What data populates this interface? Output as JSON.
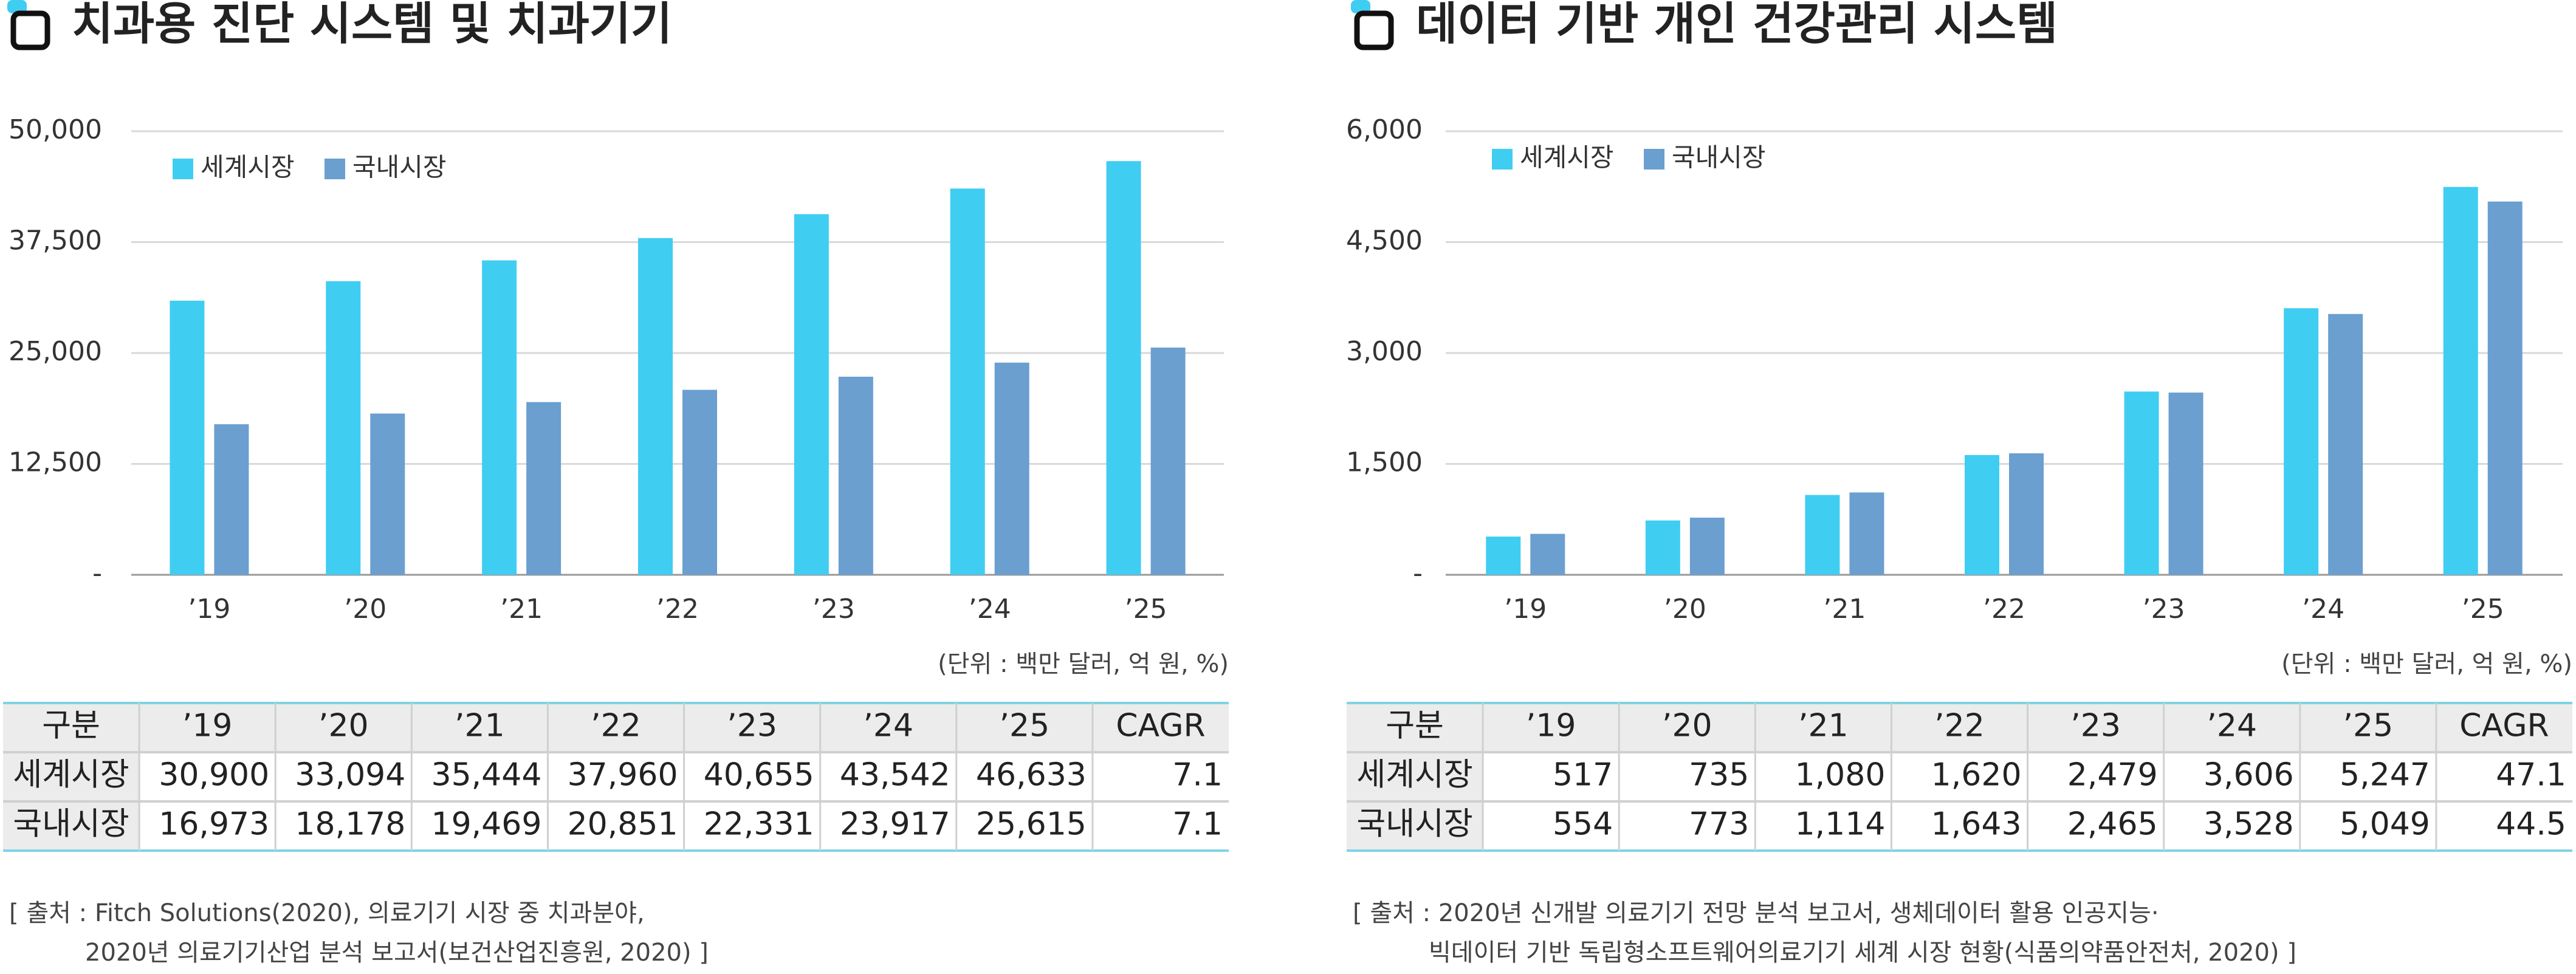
{
  "chart_data": [
    {
      "type": "bar",
      "title": "치과용 진단 시스템 및 치과기기",
      "categories": [
        "’19",
        "’20",
        "’21",
        "’22",
        "’23",
        "’24",
        "’25"
      ],
      "series": [
        {
          "name": "세계시장",
          "color": "#40cdf2",
          "values": [
            30900,
            33094,
            35444,
            37960,
            40655,
            43542,
            46633
          ]
        },
        {
          "name": "국내시장",
          "color": "#6a9fd0",
          "values": [
            16973,
            18178,
            19469,
            20851,
            22331,
            23917,
            25615
          ]
        }
      ],
      "ylim": [
        0,
        50000
      ],
      "yticks": [
        {
          "value": 0,
          "label": "-"
        },
        {
          "value": 12500,
          "label": "12,500"
        },
        {
          "value": 25000,
          "label": "25,000"
        },
        {
          "value": 37500,
          "label": "37,500"
        },
        {
          "value": 50000,
          "label": "50,000"
        }
      ],
      "grid": true,
      "unit_note": "(단위 : 백만 달러, 억 원, %)",
      "table": {
        "header": [
          "구분",
          "’19",
          "’20",
          "’21",
          "’22",
          "’23",
          "’24",
          "’25",
          "CAGR"
        ],
        "rows": [
          [
            "세계시장",
            "30,900",
            "33,094",
            "35,444",
            "37,960",
            "40,655",
            "43,542",
            "46,633",
            "7.1"
          ],
          [
            "국내시장",
            "16,973",
            "18,178",
            "19,469",
            "20,851",
            "22,331",
            "23,917",
            "25,615",
            "7.1"
          ]
        ]
      },
      "source": [
        "[ 출처 : Fitch Solutions(2020), 의료기기 시장 중 치과분야,",
        "2020년 의료기기산업 분석 보고서(보건산업진흥원, 2020) ]"
      ]
    },
    {
      "type": "bar",
      "title": "데이터 기반 개인 건강관리 시스템",
      "categories": [
        "’19",
        "’20",
        "’21",
        "’22",
        "’23",
        "’24",
        "’25"
      ],
      "series": [
        {
          "name": "세계시장",
          "color": "#40cdf2",
          "values": [
            517,
            735,
            1080,
            1620,
            2479,
            3606,
            5247
          ]
        },
        {
          "name": "국내시장",
          "color": "#6a9fd0",
          "values": [
            554,
            773,
            1114,
            1643,
            2465,
            3528,
            5049
          ]
        }
      ],
      "ylim": [
        0,
        6000
      ],
      "yticks": [
        {
          "value": 0,
          "label": "-"
        },
        {
          "value": 1500,
          "label": "1,500"
        },
        {
          "value": 3000,
          "label": "3,000"
        },
        {
          "value": 4500,
          "label": "4,500"
        },
        {
          "value": 6000,
          "label": "6,000"
        }
      ],
      "grid": true,
      "unit_note": "(단위 : 백만 달러, 억 원, %)",
      "table": {
        "header": [
          "구분",
          "’19",
          "’20",
          "’21",
          "’22",
          "’23",
          "’24",
          "’25",
          "CAGR"
        ],
        "rows": [
          [
            "세계시장",
            "517",
            "735",
            "1,080",
            "1,620",
            "2,479",
            "3,606",
            "5,247",
            "47.1"
          ],
          [
            "국내시장",
            "554",
            "773",
            "1,114",
            "1,643",
            "2,465",
            "3,528",
            "5,049",
            "44.5"
          ]
        ]
      },
      "source": [
        "[ 출처 : 2020년 신개발 의료기기 전망 분석 보고서, 생체데이터 활용 인공지능·",
        "빅데이터 기반 독립형소프트웨어의료기기 세계 시장 현황(식품의약품안전처, 2020) ]"
      ]
    }
  ]
}
